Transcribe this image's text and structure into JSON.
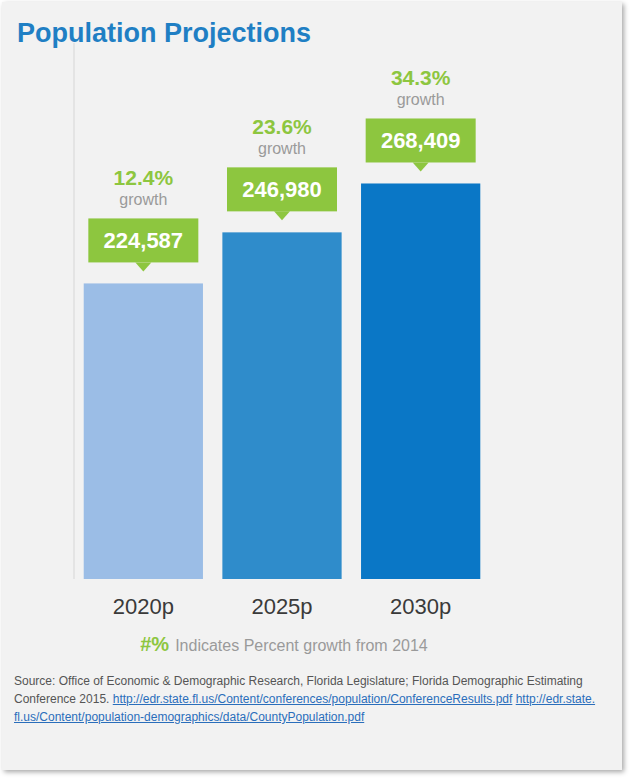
{
  "chart_data": {
    "type": "bar",
    "title": "Population Projections",
    "categories": [
      "2020p",
      "2025p",
      "2030p"
    ],
    "values": [
      224587,
      246980,
      268409
    ],
    "value_labels": [
      "224,587",
      "246,980",
      "268,409"
    ],
    "colors": [
      "#9bbde6",
      "#2f8ccb",
      "#0a77c6"
    ],
    "ylim": [
      95000,
      330000
    ],
    "yticks": [],
    "grid": false,
    "data_labels": true,
    "tick_labels": "x",
    "growth": {
      "values": [
        12.4,
        23.6,
        34.3
      ],
      "value_labels": [
        "12.4%",
        "23.6%",
        "34.3%"
      ],
      "label": "growth"
    },
    "note": {
      "symbol": "#%",
      "text": "Indicates Percent growth from 2014"
    },
    "source": {
      "text": "Source: Office of Economic & Demographic Research, Florida Legislature; Florida Demographic Estimating Conference 2015.",
      "links": [
        "http://edr.state.fl.us/Content/conferences/population/ConferenceResults.pdf",
        "http://edr.state.fl.us/Content/population-demographics/data/CountyPopulation.pdf"
      ]
    }
  }
}
